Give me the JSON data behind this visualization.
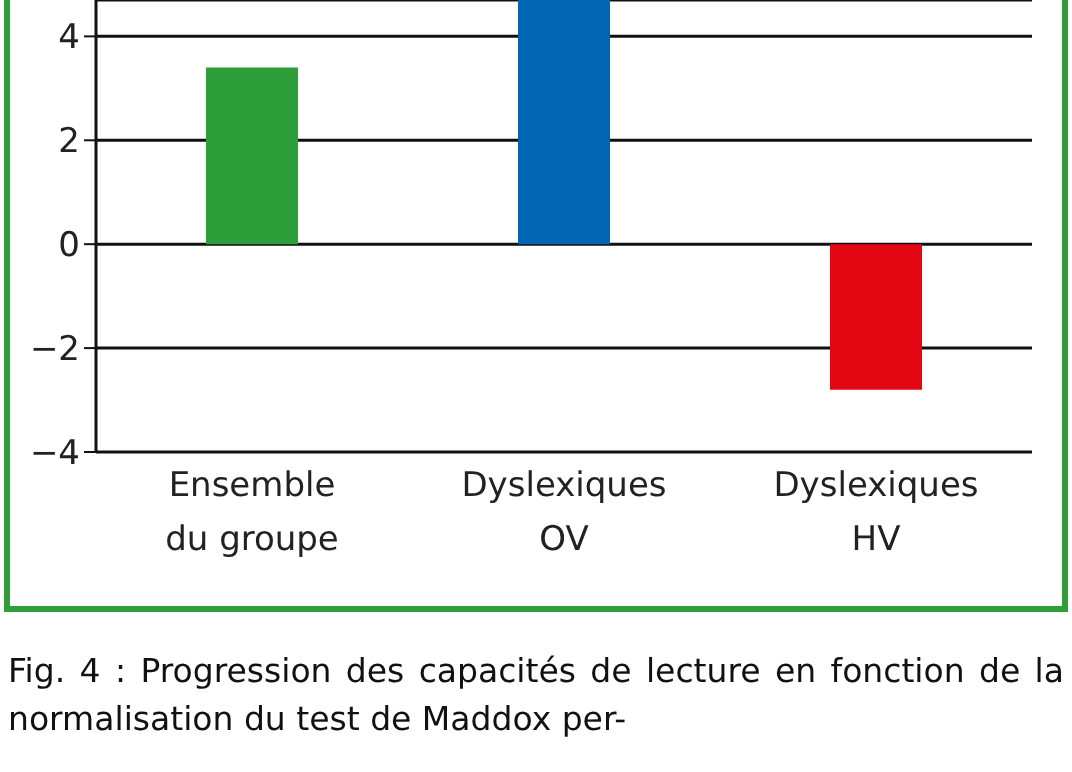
{
  "chart_data": {
    "type": "bar",
    "categories": [
      "Ensemble\ndu groupe",
      "Dyslexiques\nOV",
      "Dyslexiques\nHV"
    ],
    "values": [
      3.4,
      4.7,
      -2.8
    ],
    "colors": [
      "#2e9e3a",
      "#0066b3",
      "#e30613"
    ],
    "ylim": [
      -4,
      4.7
    ],
    "yticks": [
      -4,
      -2,
      0,
      2,
      4
    ],
    "grid": "y",
    "annotations": [
      "Fig. 4 : Progression des capacités de lecture en fonction de la normalisation du test de Maddox per-"
    ]
  }
}
